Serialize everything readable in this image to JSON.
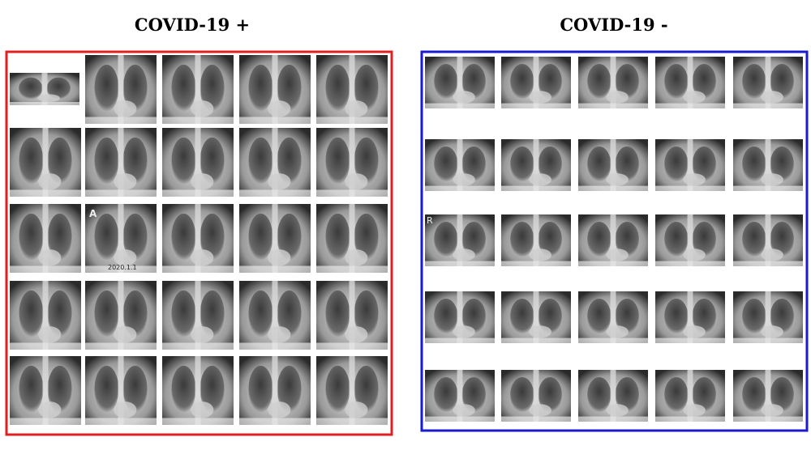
{
  "left": {
    "title": "COVID-19 +",
    "image_labels": [
      "A",
      "2020.1.1"
    ]
  },
  "right": {
    "title": "COVID-19 -",
    "image_labels": [
      "R"
    ]
  }
}
